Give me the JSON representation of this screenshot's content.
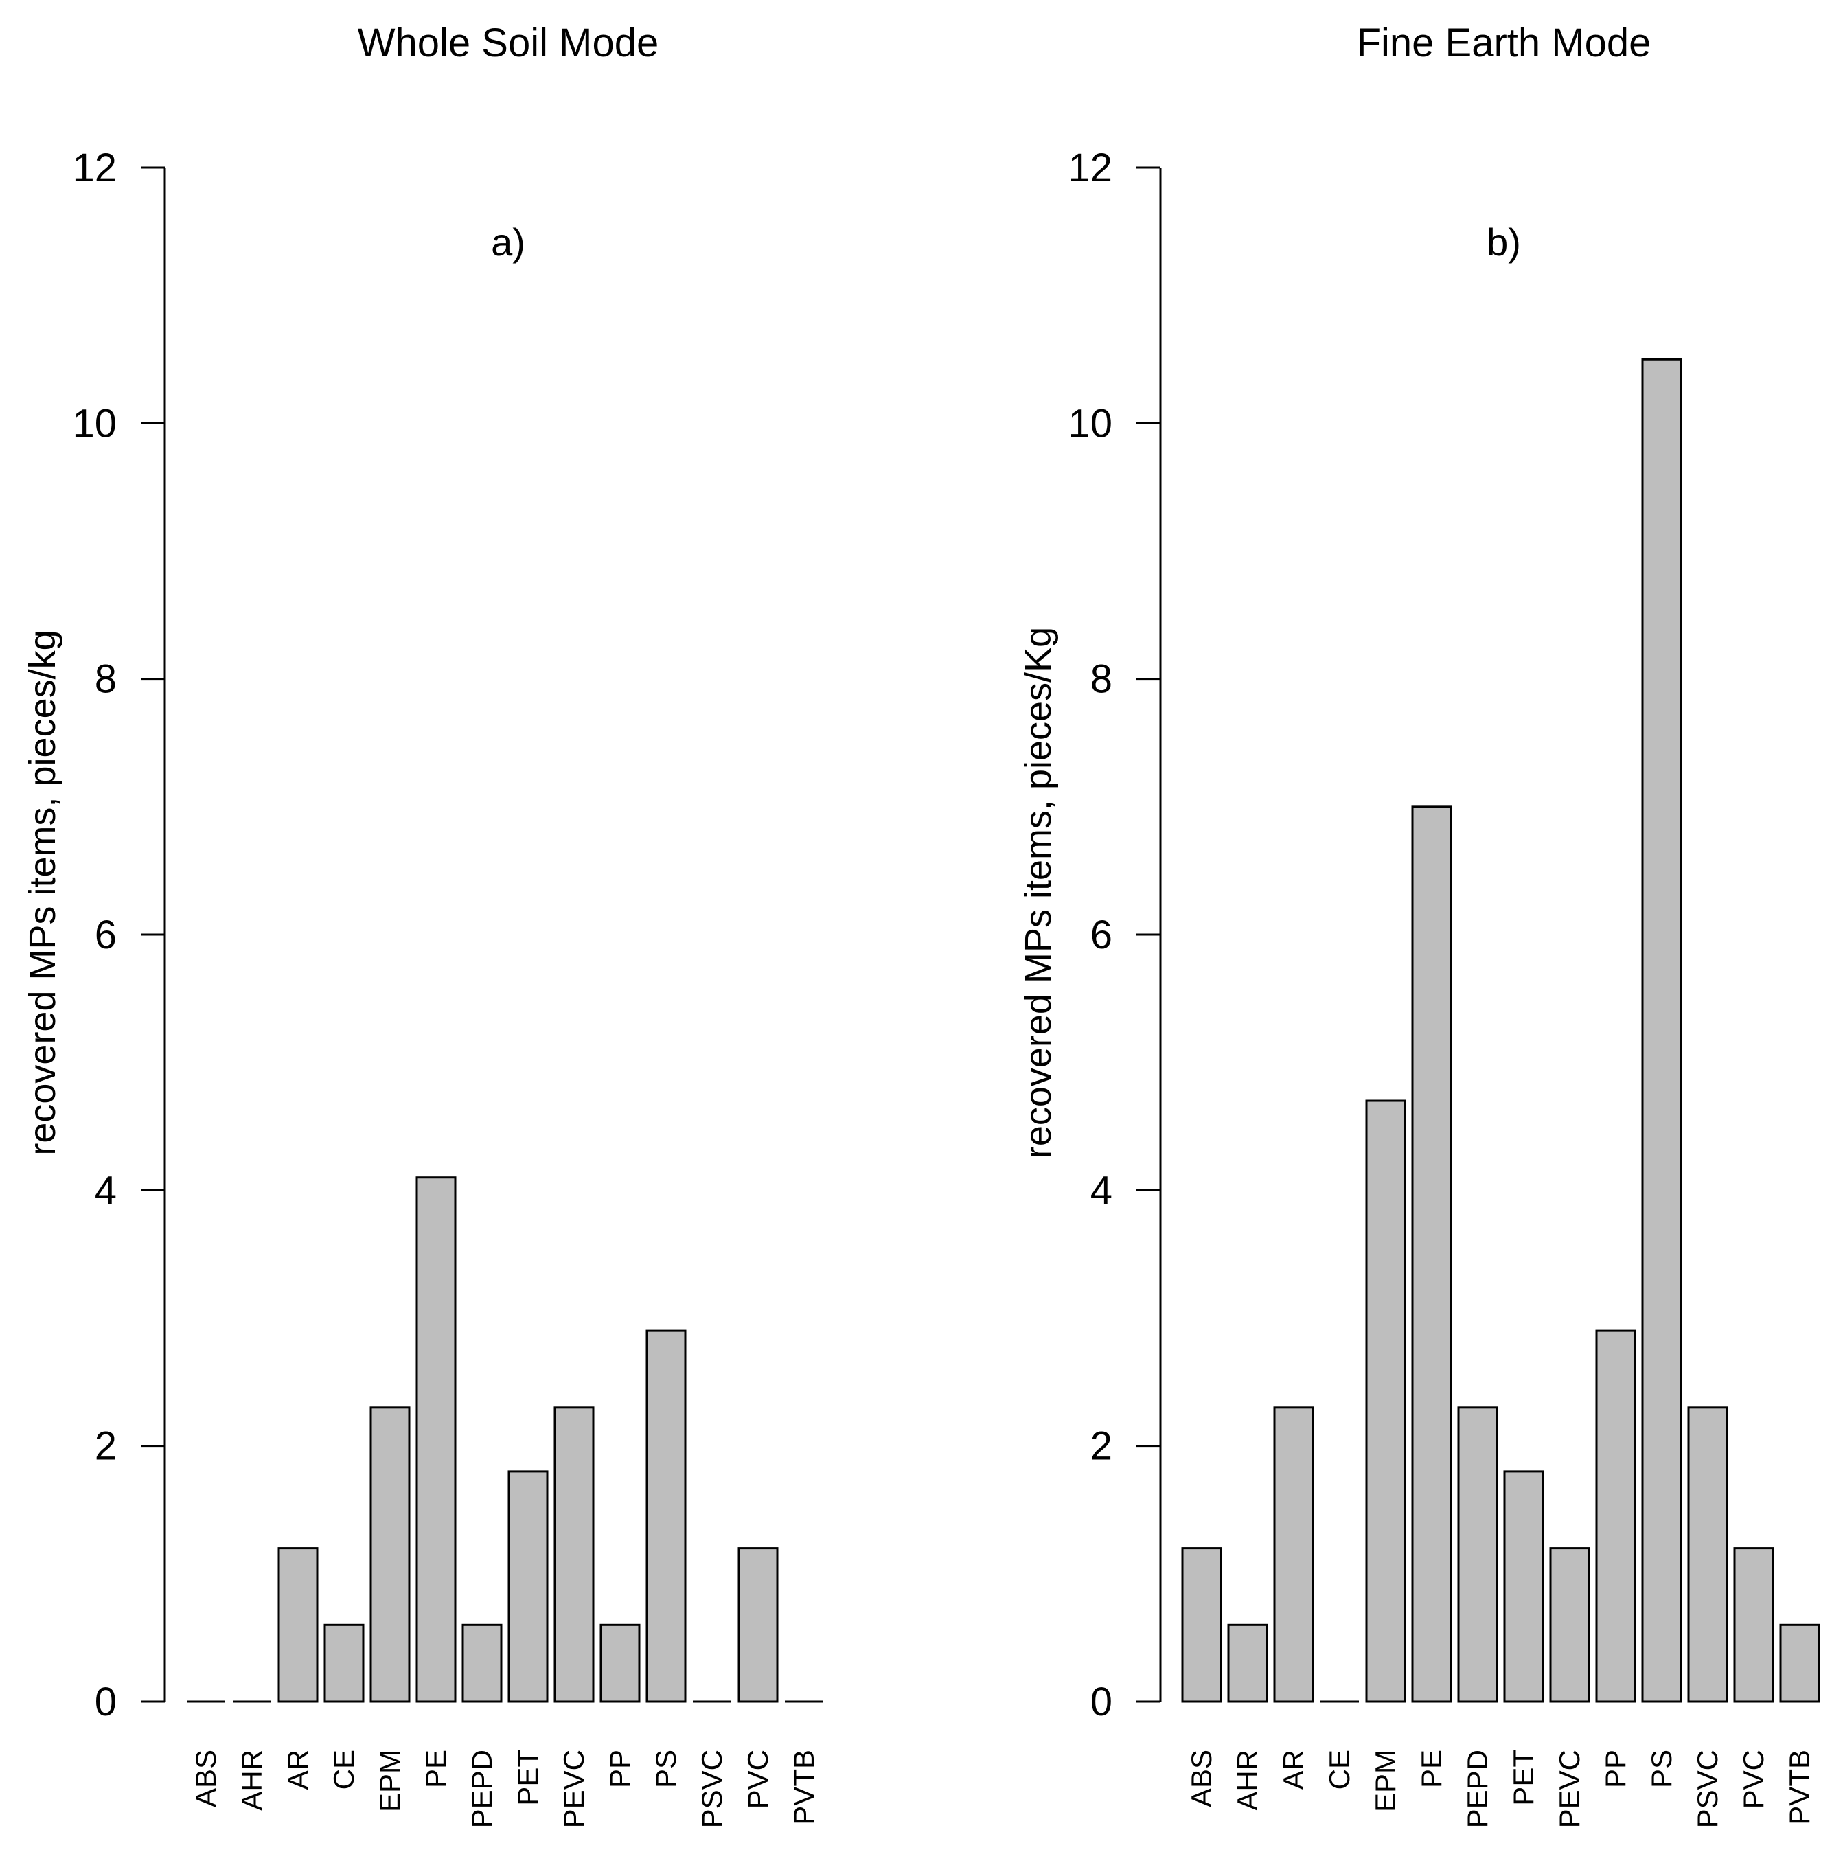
{
  "chart_data": [
    {
      "type": "bar",
      "title": "Whole Soil Mode",
      "panel_label": "a)",
      "ylabel": "recovered MPs items, pieces/kg",
      "xlabel": "",
      "ylim": [
        0,
        12
      ],
      "yticks": [
        0,
        2,
        4,
        6,
        8,
        10,
        12
      ],
      "categories": [
        "ABS",
        "AHR",
        "AR",
        "CE",
        "EPM",
        "PE",
        "PEPD",
        "PET",
        "PEVC",
        "PP",
        "PS",
        "PSVC",
        "PVC",
        "PVTB"
      ],
      "values": [
        0,
        0,
        1.2,
        0.6,
        2.3,
        4.1,
        0.6,
        1.8,
        2.3,
        0.6,
        2.9,
        0,
        1.2,
        0
      ]
    },
    {
      "type": "bar",
      "title": "Fine Earth Mode",
      "panel_label": "b)",
      "ylabel": "recovered MPs items, pieces/Kg",
      "xlabel": "",
      "ylim": [
        0,
        12
      ],
      "yticks": [
        0,
        2,
        4,
        6,
        8,
        10,
        12
      ],
      "categories": [
        "ABS",
        "AHR",
        "AR",
        "CE",
        "EPM",
        "PE",
        "PEPD",
        "PET",
        "PEVC",
        "PP",
        "PS",
        "PSVC",
        "PVC",
        "PVTB"
      ],
      "values": [
        1.2,
        0.6,
        2.3,
        0,
        4.7,
        7.0,
        2.3,
        1.8,
        1.2,
        2.9,
        10.5,
        2.3,
        1.2,
        0.6
      ]
    }
  ]
}
